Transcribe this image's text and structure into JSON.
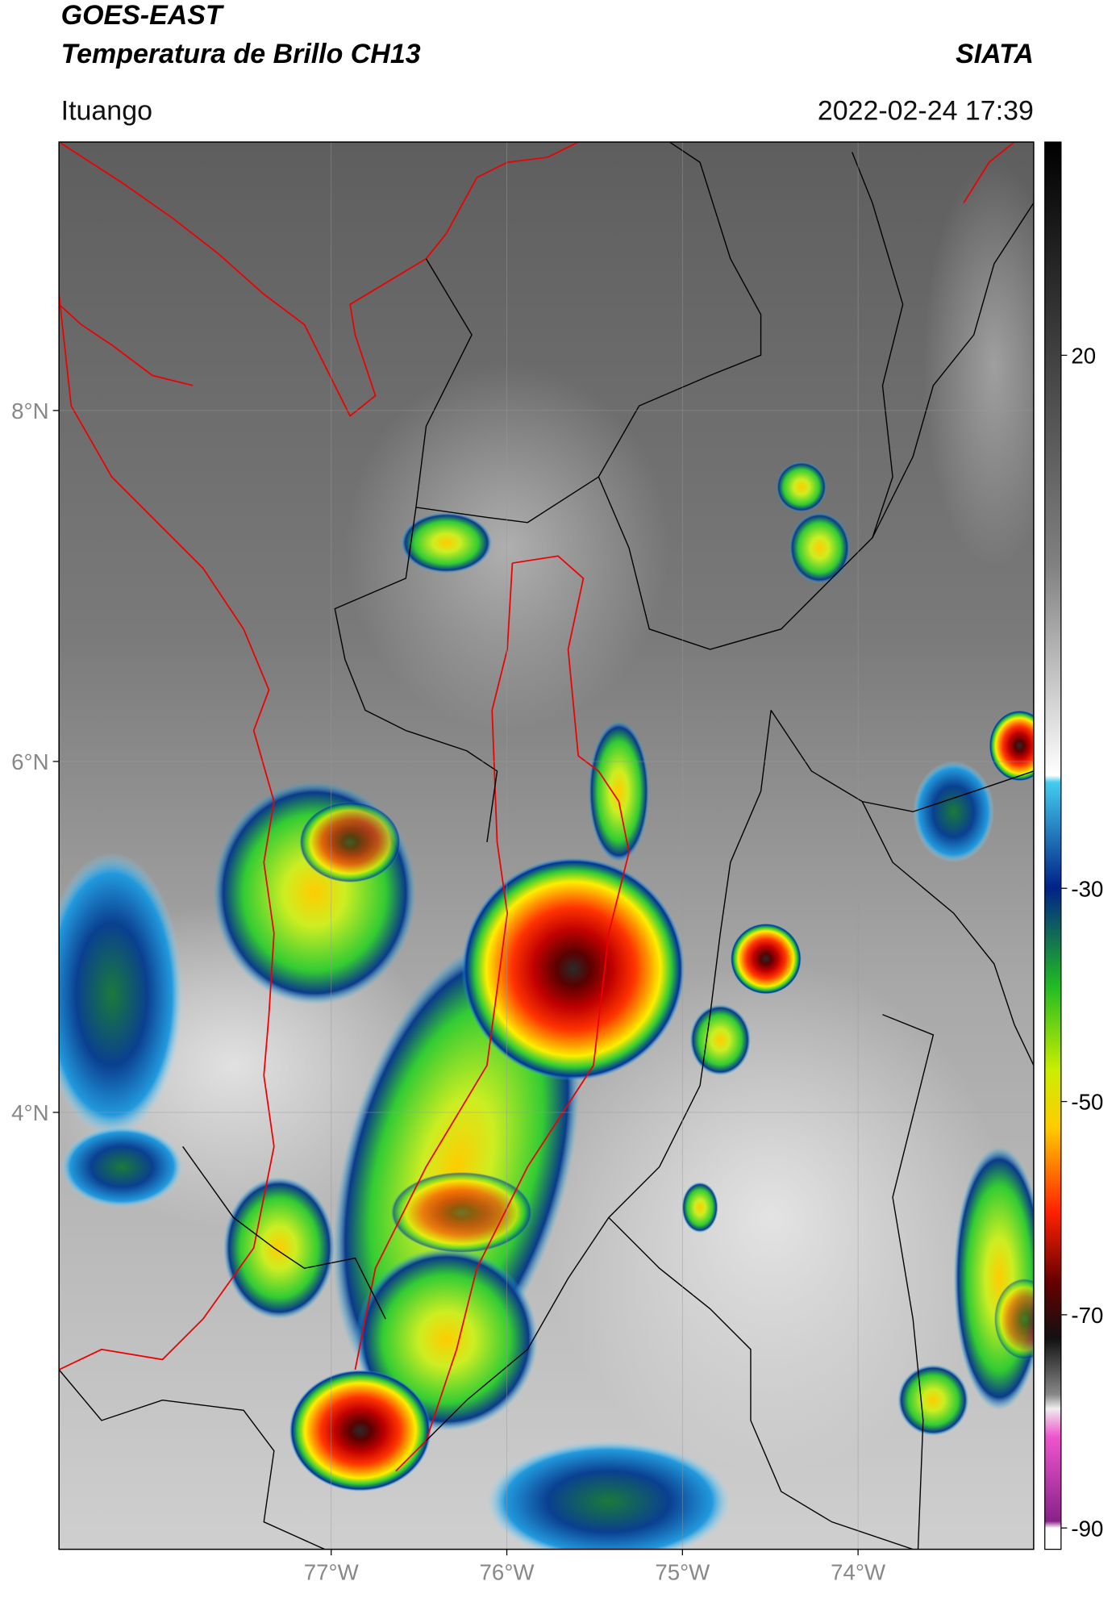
{
  "header": {
    "title_line1": "GOES-EAST",
    "title_line2": "Temperatura de Brillo CH13",
    "source": "SIATA",
    "region": "Ituango",
    "datetime": "2022-02-24 17:39"
  },
  "map": {
    "xlim": [
      -78.55,
      -73
    ],
    "ylim": [
      1.51,
      9.53
    ],
    "xticks": [
      {
        "value": -77,
        "label": "77°W"
      },
      {
        "value": -76,
        "label": "76°W"
      },
      {
        "value": -75,
        "label": "75°W"
      },
      {
        "value": -74,
        "label": "74°W"
      }
    ],
    "yticks": [
      {
        "value": 8,
        "label": "8°N"
      },
      {
        "value": 6,
        "label": "6°N"
      },
      {
        "value": 4,
        "label": "4°N"
      }
    ],
    "grid": true
  },
  "colorbar": {
    "lim": [
      -92,
      40
    ],
    "ticks": [
      20,
      -30,
      -50,
      -70,
      -90
    ]
  }
}
